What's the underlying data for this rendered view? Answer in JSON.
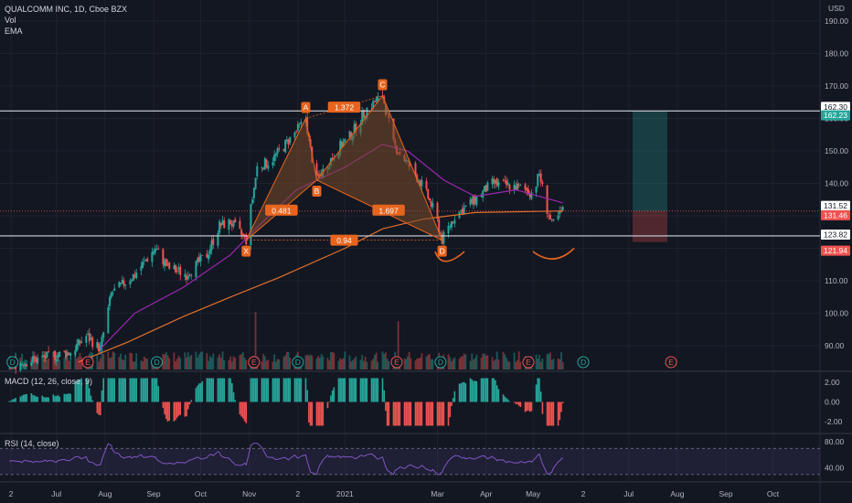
{
  "header": {
    "symbol_line": "QUALCOMM INC, 1D, Cboe BZX",
    "indicator_vol": "Vol",
    "indicator_ema": "EMA"
  },
  "price_axis": {
    "currency": "USD"
  },
  "colors": {
    "background": "#131722",
    "grid": "#1e222d",
    "up": "#26a69a",
    "down": "#ef5350",
    "ema_short": "#9c27b0",
    "ema_long": "#e0702a",
    "pattern_fill": "#7a4a2a",
    "label_bg": "#e8641e",
    "macd_line": "#2962ff",
    "rsi_line": "#7e57c2"
  },
  "panes": {
    "macd_title": "MACD (12, 26, close, 9)",
    "rsi_title": "RSI (14, close)"
  },
  "chart_data": [
    {
      "type": "candlestick",
      "title": "QUALCOMM INC, 1D, Cboe BZX",
      "ylabel": "USD",
      "yticks": [
        90.0,
        100.0,
        110.0,
        120.0,
        130.0,
        140.0,
        150.0,
        160.0,
        170.0,
        180.0,
        190.0
      ],
      "ylim": [
        86,
        193
      ],
      "xticks": [
        "2",
        "Jul",
        "Aug",
        "Sep",
        "Oct",
        "Nov",
        "2",
        "2021",
        "Mar",
        "Apr",
        "May",
        "2",
        "Jul",
        "Aug",
        "Sep",
        "Oct"
      ],
      "price_path": [
        {
          "x": "2020-06-01",
          "close": 84
        },
        {
          "x": "2020-06-20",
          "close": 86
        },
        {
          "x": "2020-07-10",
          "close": 88
        },
        {
          "x": "2020-07-20",
          "close": 93
        },
        {
          "x": "2020-07-29",
          "close": 89
        },
        {
          "x": "2020-08-05",
          "close": 106
        },
        {
          "x": "2020-08-20",
          "close": 112
        },
        {
          "x": "2020-09-02",
          "close": 120
        },
        {
          "x": "2020-09-10",
          "close": 114
        },
        {
          "x": "2020-09-22",
          "close": 112
        },
        {
          "x": "2020-10-05",
          "close": 118
        },
        {
          "x": "2020-10-13",
          "close": 127
        },
        {
          "x": "2020-10-20",
          "close": 128
        },
        {
          "x": "2020-10-30",
          "close": 122.5
        },
        {
          "x": "2020-11-06",
          "close": 145
        },
        {
          "x": "2020-11-15",
          "close": 147
        },
        {
          "x": "2020-12-01",
          "close": 156
        },
        {
          "x": "2020-12-07",
          "close": 160
        },
        {
          "x": "2020-12-10",
          "close": 150
        },
        {
          "x": "2020-12-14",
          "close": 141
        },
        {
          "x": "2020-12-28",
          "close": 151
        },
        {
          "x": "2021-01-05",
          "close": 155
        },
        {
          "x": "2021-01-15",
          "close": 163
        },
        {
          "x": "2021-01-25",
          "close": 167
        },
        {
          "x": "2021-02-01",
          "close": 152
        },
        {
          "x": "2021-02-10",
          "close": 146
        },
        {
          "x": "2021-02-20",
          "close": 139
        },
        {
          "x": "2021-02-28",
          "close": 130
        },
        {
          "x": "2021-03-04",
          "close": 122.5
        },
        {
          "x": "2021-03-12",
          "close": 130
        },
        {
          "x": "2021-03-25",
          "close": 135
        },
        {
          "x": "2021-04-05",
          "close": 140
        },
        {
          "x": "2021-04-20",
          "close": 139
        },
        {
          "x": "2021-05-01",
          "close": 137
        },
        {
          "x": "2021-05-05",
          "close": 143
        },
        {
          "x": "2021-05-10",
          "close": 132
        },
        {
          "x": "2021-05-13",
          "close": 127
        },
        {
          "x": "2021-05-20",
          "close": 131.5
        }
      ],
      "ema_short": [
        {
          "x": "2020-07-29",
          "y": 89
        },
        {
          "x": "2020-08-20",
          "y": 100
        },
        {
          "x": "2020-09-20",
          "y": 108
        },
        {
          "x": "2020-10-20",
          "y": 118
        },
        {
          "x": "2020-11-05",
          "y": 126
        },
        {
          "x": "2020-12-01",
          "y": 138
        },
        {
          "x": "2021-01-01",
          "y": 145
        },
        {
          "x": "2021-01-25",
          "y": 152
        },
        {
          "x": "2021-02-10",
          "y": 150
        },
        {
          "x": "2021-03-05",
          "y": 141
        },
        {
          "x": "2021-03-25",
          "y": 136
        },
        {
          "x": "2021-04-20",
          "y": 138
        },
        {
          "x": "2021-05-20",
          "y": 134
        }
      ],
      "ema_long": [
        {
          "x": "2020-07-15",
          "y": 85
        },
        {
          "x": "2020-08-15",
          "y": 91
        },
        {
          "x": "2020-09-20",
          "y": 99
        },
        {
          "x": "2020-10-20",
          "y": 105
        },
        {
          "x": "2020-11-20",
          "y": 111
        },
        {
          "x": "2021-01-01",
          "y": 120
        },
        {
          "x": "2021-01-25",
          "y": 126
        },
        {
          "x": "2021-02-20",
          "y": 129
        },
        {
          "x": "2021-03-25",
          "y": 131
        },
        {
          "x": "2021-05-20",
          "y": 131.5
        }
      ],
      "horizontal_levels": [
        {
          "price": 162.3,
          "label": "162.30",
          "color": "#d1d4dc"
        },
        {
          "price": 123.82,
          "label": "123.82",
          "color": "#d1d4dc"
        }
      ],
      "price_labels": [
        {
          "price": 162.3,
          "label": "162.30",
          "bg": "#ffffff",
          "fg": "#131722"
        },
        {
          "price": 162.23,
          "label": "162.23",
          "bg": "#26a69a",
          "fg": "#ffffff"
        },
        {
          "price": 131.52,
          "label": "131.52",
          "bg": "#ffffff",
          "fg": "#131722"
        },
        {
          "price": 131.46,
          "label": "131.46",
          "bg": "#ef5350",
          "fg": "#ffffff"
        },
        {
          "price": 123.82,
          "label": "123.82",
          "bg": "#ffffff",
          "fg": "#131722"
        },
        {
          "price": 121.94,
          "label": "121.94",
          "bg": "#ef5350",
          "fg": "#ffffff"
        }
      ],
      "harmonic_pattern": {
        "points": [
          {
            "label": "X",
            "x": "2020-10-30",
            "price": 122.5
          },
          {
            "label": "A",
            "x": "2020-12-07",
            "price": 160
          },
          {
            "label": "B",
            "x": "2020-12-14",
            "price": 141
          },
          {
            "label": "C",
            "x": "2021-01-25",
            "price": 167
          },
          {
            "label": "D",
            "x": "2021-03-04",
            "price": 122.5
          }
        ],
        "ratios": [
          {
            "label": "0.481",
            "near": "XB"
          },
          {
            "label": "1.372",
            "near": "AC"
          },
          {
            "label": "1.697",
            "near": "BD"
          },
          {
            "label": "0.94",
            "near": "XD"
          }
        ]
      },
      "position": {
        "entry": 131.46,
        "target": 162.23,
        "stop": 121.94
      },
      "events": [
        {
          "label": "D",
          "x": "2020-06-03"
        },
        {
          "label": "E",
          "x": "2020-07-21"
        },
        {
          "label": "D",
          "x": "2020-09-03"
        },
        {
          "label": "E",
          "x": "2020-11-04"
        },
        {
          "label": "D",
          "x": "2020-12-02"
        },
        {
          "label": "E",
          "x": "2021-02-03"
        },
        {
          "label": "D",
          "x": "2021-03-03"
        },
        {
          "label": "E",
          "x": "2021-04-28"
        },
        {
          "label": "D",
          "x": "2021-06-02"
        },
        {
          "label": "E",
          "x": "2021-07-28"
        }
      ]
    },
    {
      "type": "bar",
      "title": "Vol",
      "description_values": "volume bars, largest spikes near 2020-11-05 and 2021-02-04"
    },
    {
      "type": "macd",
      "title": "MACD (12, 26, close, 9)",
      "yticks": [
        2.0,
        0.0,
        -2.0
      ],
      "ylim": [
        -3,
        3
      ]
    },
    {
      "type": "line",
      "title": "RSI (14, close)",
      "yticks": [
        80.0,
        40.0
      ],
      "bands": [
        70,
        30
      ],
      "ylim": [
        20,
        90
      ]
    }
  ]
}
